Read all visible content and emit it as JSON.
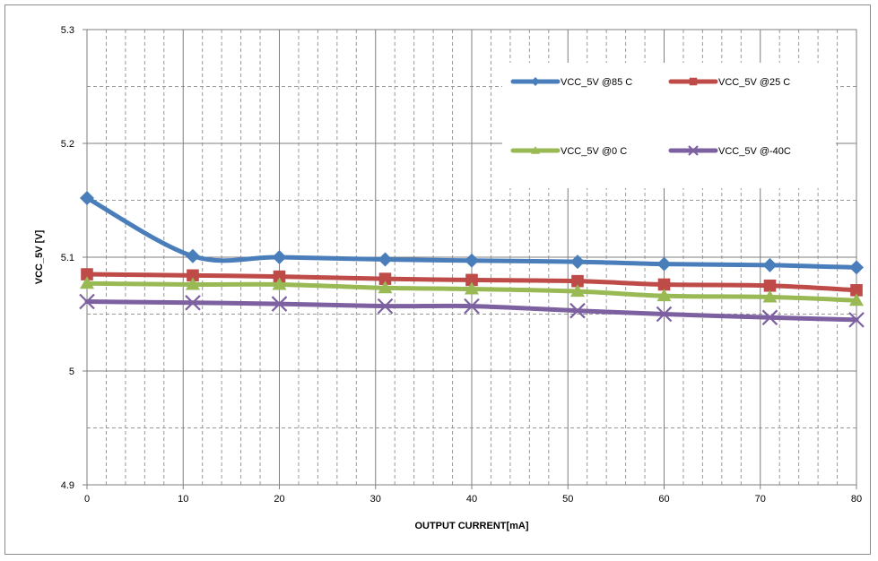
{
  "chart_data": {
    "type": "line",
    "xlabel": "OUTPUT CURRENT[mA]",
    "ylabel": "VCC_5V [V]",
    "xlim": [
      0,
      80
    ],
    "ylim": [
      4.9,
      5.3
    ],
    "x_ticks": [
      0,
      10,
      20,
      30,
      40,
      50,
      60,
      70,
      80
    ],
    "y_ticks": [
      4.9,
      5,
      5.1,
      5.2,
      5.3
    ],
    "y_tick_labels": [
      "4.9",
      "5",
      "5.1",
      "5.2",
      "5.3"
    ],
    "grid": true,
    "legend_position": "top-right",
    "series": [
      {
        "name": "VCC_5V @85 C",
        "color": "#4a7ebb",
        "marker": "diamond",
        "x": [
          0,
          11,
          20,
          31,
          40,
          51,
          60,
          71,
          80
        ],
        "y": [
          5.152,
          5.101,
          5.1,
          5.098,
          5.097,
          5.096,
          5.094,
          5.093,
          5.091
        ]
      },
      {
        "name": "VCC_5V  @25 C",
        "color": "#be4b48",
        "marker": "square",
        "x": [
          0,
          11,
          20,
          31,
          40,
          51,
          60,
          71,
          80
        ],
        "y": [
          5.085,
          5.084,
          5.083,
          5.081,
          5.08,
          5.079,
          5.076,
          5.075,
          5.071
        ]
      },
      {
        "name": "VCC_5V  @0 C",
        "color": "#98b954",
        "marker": "triangle",
        "x": [
          0,
          11,
          20,
          31,
          40,
          51,
          60,
          71,
          80
        ],
        "y": [
          5.077,
          5.076,
          5.076,
          5.073,
          5.072,
          5.07,
          5.066,
          5.065,
          5.062
        ]
      },
      {
        "name": "VCC_5V  @-40C",
        "color": "#7d60a0",
        "marker": "x",
        "x": [
          0,
          11,
          20,
          31,
          40,
          51,
          60,
          71,
          80
        ],
        "y": [
          5.061,
          5.06,
          5.059,
          5.057,
          5.057,
          5.053,
          5.05,
          5.047,
          5.045
        ]
      }
    ]
  }
}
